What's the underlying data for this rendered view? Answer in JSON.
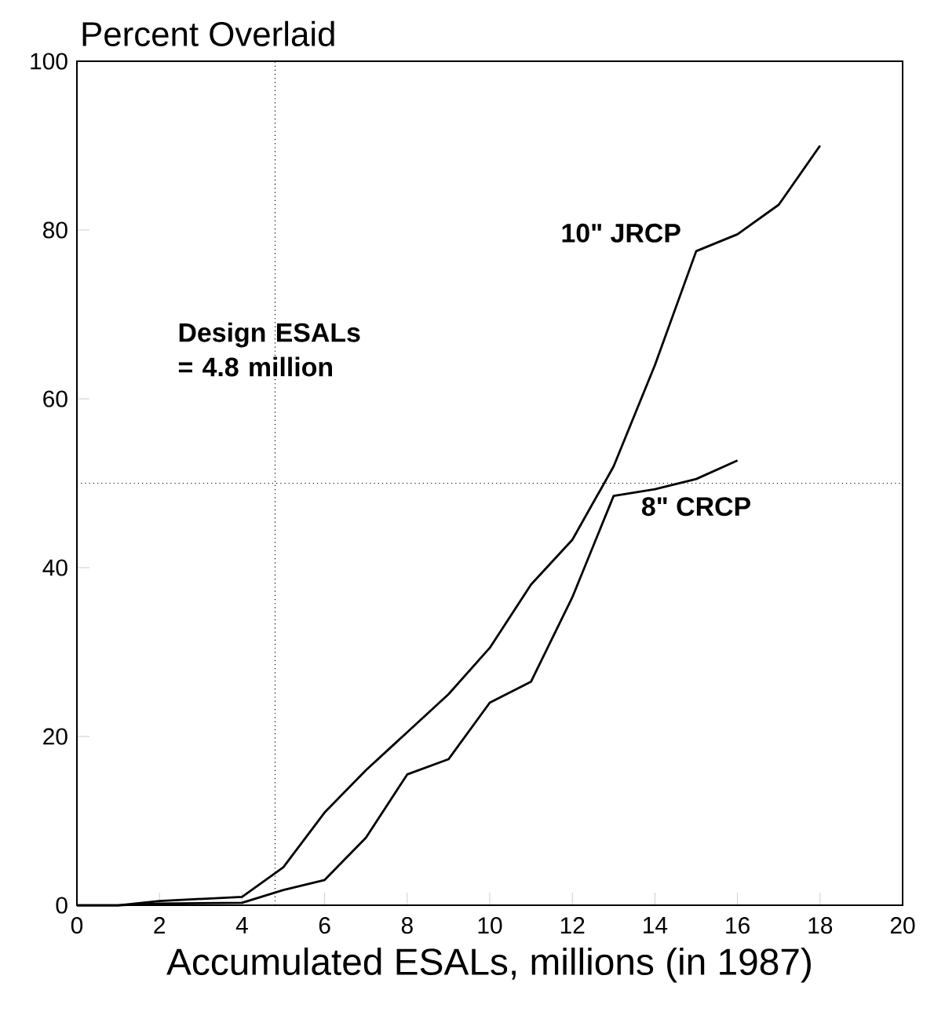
{
  "chart_data": {
    "type": "line",
    "ylabel": "Percent Overlaid",
    "xlabel": "Accumulated ESALs, millions (in 1987)",
    "xlim": [
      0,
      20
    ],
    "xticks": [
      0,
      2,
      4,
      6,
      8,
      10,
      12,
      14,
      16,
      18,
      20
    ],
    "ylim": [
      0,
      100
    ],
    "yticks": [
      0,
      20,
      40,
      60,
      80,
      100
    ],
    "series": [
      {
        "name": "10\" JRCP",
        "color": "#000000",
        "x": [
          0,
          1,
          2,
          4,
          5,
          6,
          7,
          8,
          9,
          10,
          11,
          12,
          13,
          14,
          15,
          16,
          17,
          18
        ],
        "values": [
          0,
          0,
          0.5,
          1,
          4.5,
          11,
          16,
          20.5,
          25,
          30.5,
          38,
          43.3,
          52,
          64,
          77.5,
          79.5,
          83,
          90
        ]
      },
      {
        "name": "8\" CRCP",
        "color": "#000000",
        "x": [
          0,
          1,
          2,
          4,
          5,
          6,
          7,
          8,
          9,
          10,
          11,
          12,
          13,
          14,
          15,
          16
        ],
        "values": [
          0,
          0,
          0.2,
          0.3,
          1.8,
          3,
          8,
          15.5,
          17.3,
          24,
          26.5,
          36.5,
          48.5,
          49.3,
          50.5,
          52.7
        ]
      }
    ],
    "ref_lines": [
      {
        "axis": "x",
        "value": 4.8,
        "label": "Design ESALs = 4.8 million",
        "line_style": "dotted"
      },
      {
        "axis": "y",
        "value": 50,
        "line_style": "dotted"
      }
    ],
    "grid": false,
    "legend": false,
    "marker": "none",
    "line_style": "solid"
  }
}
